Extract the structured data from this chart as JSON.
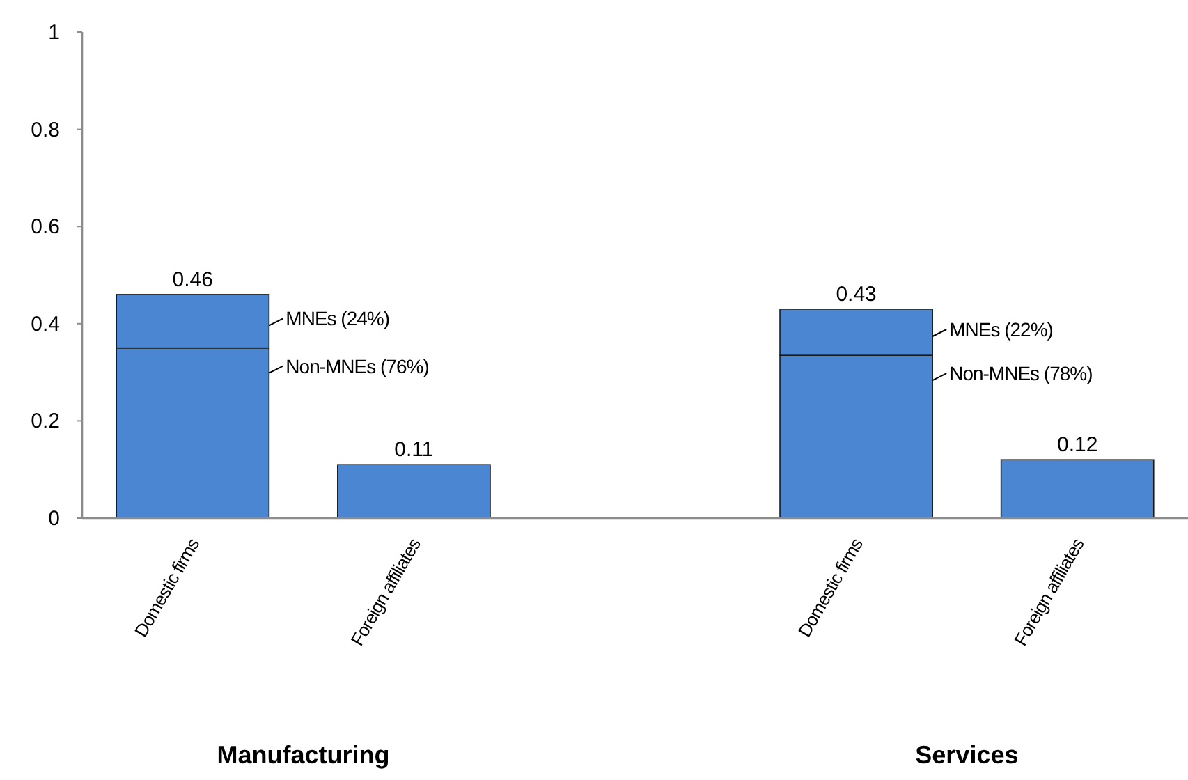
{
  "chart_data": {
    "type": "bar",
    "stacked": true,
    "categories": [
      "Domestic firms",
      "Foreign affiliates",
      null,
      "Domestic firms",
      "Foreign affiliates"
    ],
    "series": [
      {
        "color": "#4a86d2",
        "values": [
          0.35,
          null,
          null,
          0.335,
          null
        ]
      },
      {
        "color": "#4a86d2",
        "values": [
          0.11,
          null,
          null,
          0.095,
          null
        ]
      },
      {
        "color": "#4a86d2",
        "values": [
          null,
          0.11,
          null,
          null,
          0.12
        ]
      }
    ],
    "totals": [
      "0.46",
      "0.11",
      null,
      "0.43",
      "0.12"
    ],
    "ylim": [
      0,
      1
    ],
    "yticks": [
      0,
      0.2,
      0.4,
      0.6,
      0.8,
      1
    ],
    "annotations": [
      "MNEs (24%)",
      "Non-MNEs (76%)",
      "MNEs (22%)",
      "Non-MNEs (78%)",
      "Manufacturing",
      "Services"
    ]
  }
}
